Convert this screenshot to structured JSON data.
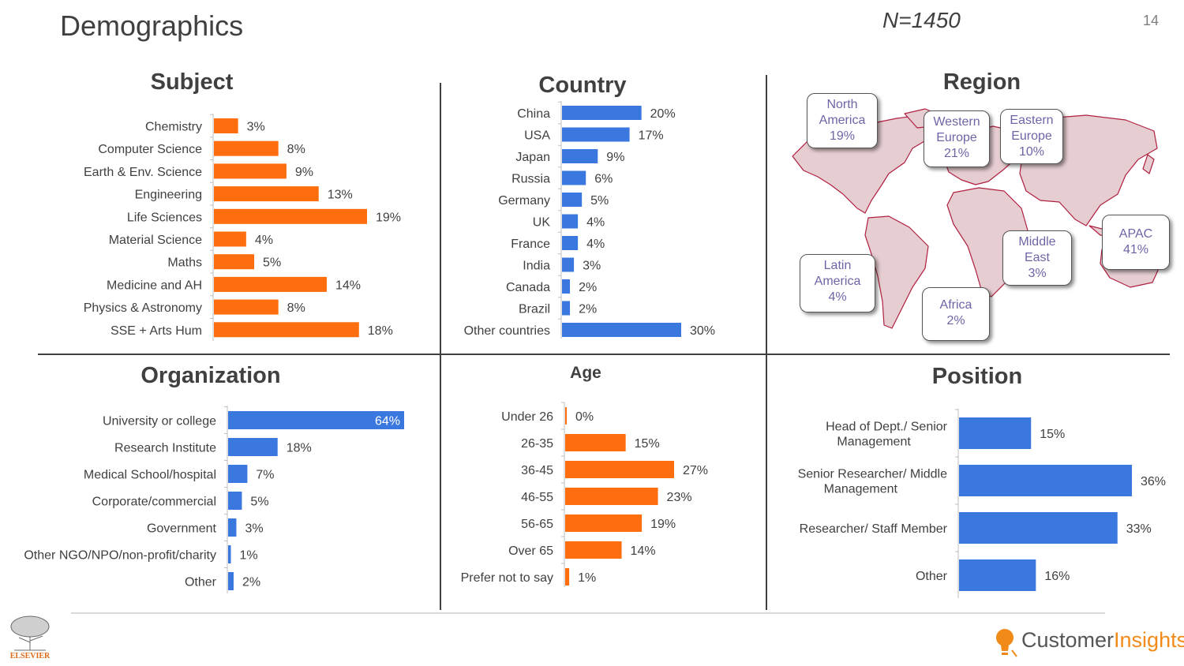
{
  "header": {
    "title": "Demographics",
    "sample_size": "N=1450",
    "page_number": "14"
  },
  "panels": {
    "subject": "Subject",
    "country": "Country",
    "region": "Region",
    "organization": "Organization",
    "age": "Age",
    "position": "Position"
  },
  "colors": {
    "orange": "#ff6e0e",
    "blue": "#3a78e0",
    "map_fill": "#e6cdd1",
    "map_stroke": "#b02040",
    "callout_text": "#7064a6"
  },
  "region_callouts": [
    {
      "name": "North America",
      "line1": "North",
      "line2": "America",
      "value": "19%"
    },
    {
      "name": "Western Europe",
      "line1": "Western",
      "line2": "Europe",
      "value": "21%"
    },
    {
      "name": "Eastern Europe",
      "line1": "Eastern",
      "line2": "Europe",
      "value": "10%"
    },
    {
      "name": "Latin America",
      "line1": "Latin",
      "line2": "America",
      "value": "4%"
    },
    {
      "name": "Middle East",
      "line1": "Middle",
      "line2": "East",
      "value": "3%"
    },
    {
      "name": "APAC",
      "line1": "APAC",
      "line2": "",
      "value": "41%"
    },
    {
      "name": "Africa",
      "line1": "Africa",
      "line2": "",
      "value": "2%"
    }
  ],
  "footer": {
    "brand_main": "Customer",
    "brand_accent": "Insights",
    "publisher": "ELSEVIER"
  },
  "chart_data": [
    {
      "id": "subject",
      "type": "bar",
      "orientation": "horizontal",
      "title": "Subject",
      "color": "orange",
      "xlim": [
        0,
        19
      ],
      "categories": [
        "Chemistry",
        "Computer Science",
        "Earth & Env. Science",
        "Engineering",
        "Life Sciences",
        "Material Science",
        "Maths",
        "Medicine and AH",
        "Physics & Astronomy",
        "SSE + Arts Hum"
      ],
      "values": [
        3,
        8,
        9,
        13,
        19,
        4,
        5,
        14,
        8,
        18
      ],
      "labels": [
        "3%",
        "8%",
        "9%",
        "13%",
        "19%",
        "4%",
        "5%",
        "14%",
        "8%",
        "18%"
      ]
    },
    {
      "id": "country",
      "type": "bar",
      "orientation": "horizontal",
      "title": "Country",
      "color": "blue",
      "xlim": [
        0,
        30
      ],
      "categories": [
        "China",
        "USA",
        "Japan",
        "Russia",
        "Germany",
        "UK",
        "France",
        "India",
        "Canada",
        "Brazil",
        "Other countries"
      ],
      "values": [
        20,
        17,
        9,
        6,
        5,
        4,
        4,
        3,
        2,
        2,
        30
      ],
      "labels": [
        "20%",
        "17%",
        "9%",
        "6%",
        "5%",
        "4%",
        "4%",
        "3%",
        "2%",
        "2%",
        "30%"
      ]
    },
    {
      "id": "organization",
      "type": "bar",
      "orientation": "horizontal",
      "title": "Organization",
      "color": "blue",
      "xlim": [
        0,
        64
      ],
      "categories": [
        "University or college",
        "Research Institute",
        "Medical School/hospital",
        "Corporate/commercial",
        "Government",
        "Other NGO/NPO/non-profit/charity",
        "Other"
      ],
      "values": [
        64,
        18,
        7,
        5,
        3,
        1,
        2
      ],
      "labels": [
        "64%",
        "18%",
        "7%",
        "5%",
        "3%",
        "1%",
        "2%"
      ]
    },
    {
      "id": "age",
      "type": "bar",
      "orientation": "horizontal",
      "title": "Age",
      "color": "orange",
      "xlim": [
        0,
        27
      ],
      "categories": [
        "Under 26",
        "26-35",
        "36-45",
        "46-55",
        "56-65",
        "Over 65",
        "Prefer not to say"
      ],
      "values": [
        0,
        15,
        27,
        23,
        19,
        14,
        1
      ],
      "labels": [
        "0%",
        "15%",
        "27%",
        "23%",
        "19%",
        "14%",
        "1%"
      ]
    },
    {
      "id": "position",
      "type": "bar",
      "orientation": "horizontal",
      "title": "Position",
      "color": "blue",
      "xlim": [
        0,
        36
      ],
      "categories": [
        [
          "Head of Dept./ Senior",
          "Management"
        ],
        [
          "Senior Researcher/ Middle",
          "Management"
        ],
        [
          "Researcher/ Staff Member"
        ],
        [
          "Other"
        ]
      ],
      "values": [
        15,
        36,
        33,
        16
      ],
      "labels": [
        "15%",
        "36%",
        "33%",
        "16%"
      ]
    }
  ]
}
